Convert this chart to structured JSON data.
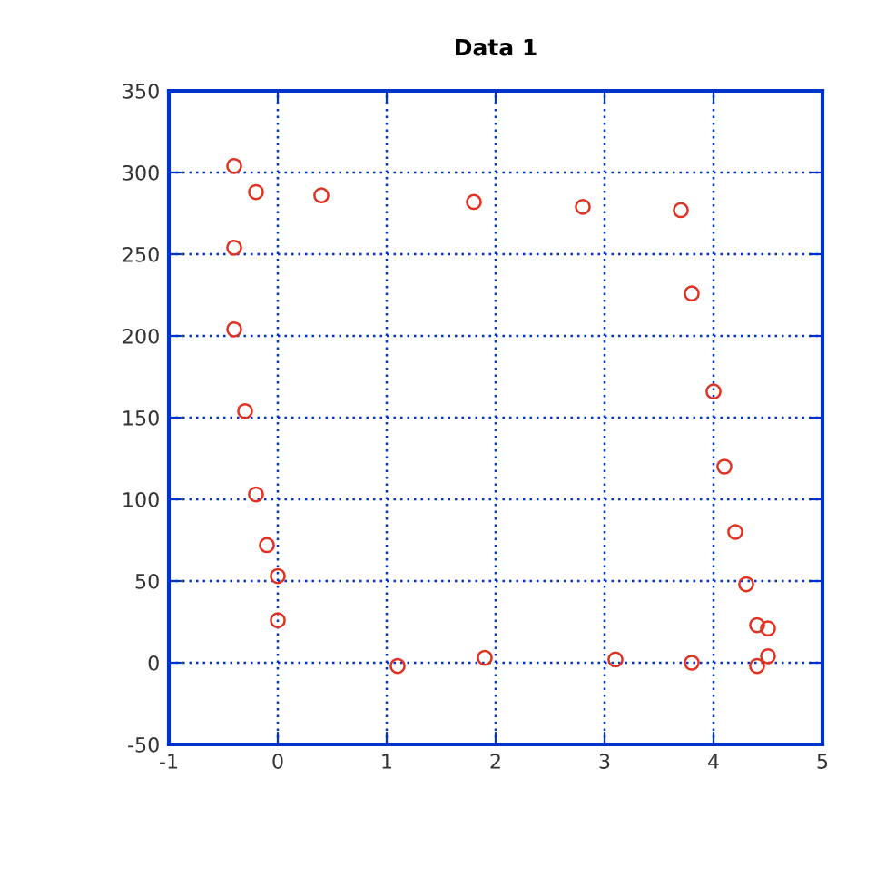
{
  "chart_data": {
    "type": "scatter",
    "title": "Data 1",
    "x": [
      -0.4,
      -0.2,
      -0.4,
      0.4,
      -0.4,
      -0.3,
      -0.2,
      -0.1,
      0,
      0,
      1.1,
      1.8,
      1.9,
      2.8,
      3.1,
      3.7,
      3.8,
      4.0,
      4.1,
      4.2,
      4.3,
      4.4,
      4.5,
      3.8,
      4.4,
      4.5
    ],
    "series": [
      {
        "color": "#e03020",
        "values": [
          304,
          288,
          254,
          286,
          204,
          154,
          103,
          72,
          53,
          26,
          -2,
          282,
          3,
          279,
          2,
          277,
          226,
          166,
          120,
          80,
          48,
          23,
          21,
          0,
          -2,
          4
        ]
      }
    ],
    "xlim": [
      -1,
      5
    ],
    "xticks": [
      -1,
      0,
      1,
      2,
      3,
      4,
      5
    ],
    "ylim": [
      -50,
      350
    ],
    "yticks": [
      -50,
      0,
      50,
      100,
      150,
      200,
      250,
      300,
      350
    ],
    "grid": true,
    "marker": "circle",
    "legend": false
  }
}
